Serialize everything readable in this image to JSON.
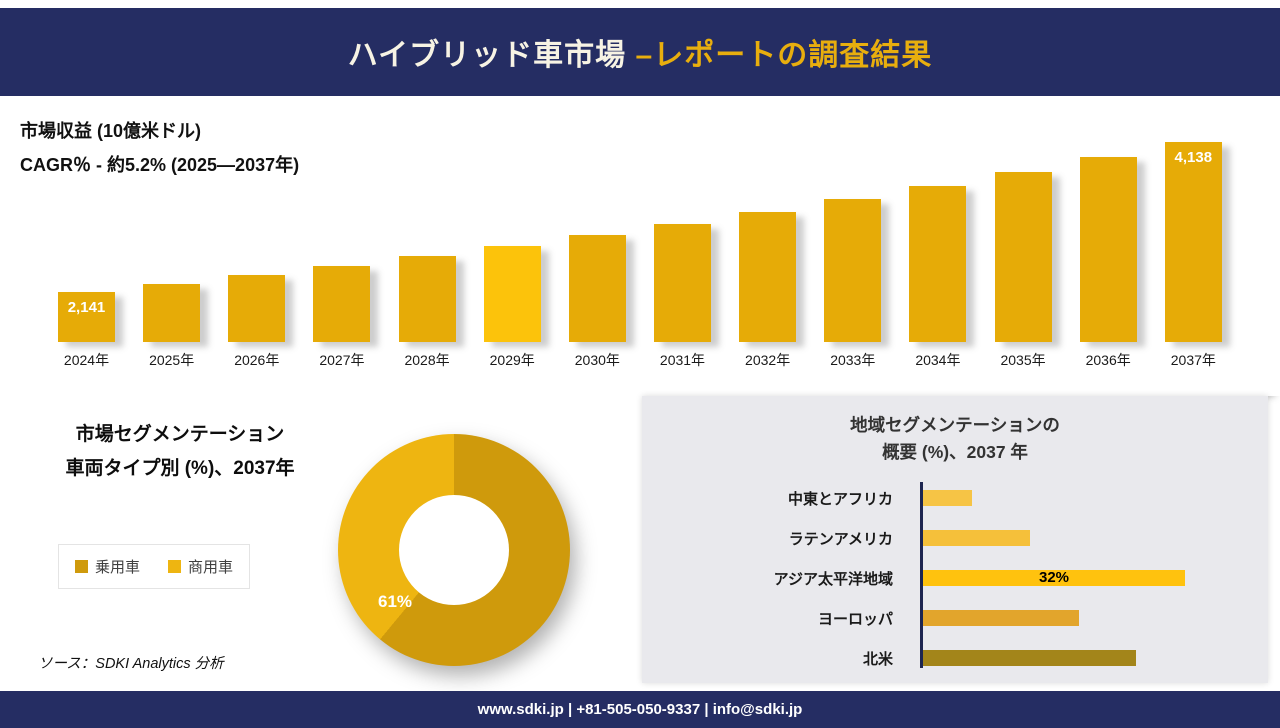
{
  "header": {
    "title_main": "ハイブリッド車市場 ",
    "title_accent": "–レポートの調査結果"
  },
  "revenue": {
    "subtitle_line1": "市場収益 (10億米ドル)",
    "subtitle_line2": "CAGR％ - 約5.2% (2025―2037年)"
  },
  "chart_data": [
    {
      "id": "revenue_bar_chart",
      "type": "bar",
      "title": "市場収益 (10億米ドル)",
      "annotation": "CAGR％ - 約5.2% (2025―2037年)",
      "categories": [
        "2024年",
        "2025年",
        "2026年",
        "2027年",
        "2028年",
        "2029年",
        "2030年",
        "2031年",
        "2032年",
        "2033年",
        "2034年",
        "2035年",
        "2036年",
        "2037年"
      ],
      "values": [
        2141,
        2252,
        2369,
        2492,
        2622,
        2758,
        2901,
        3052,
        3211,
        3378,
        3554,
        3739,
        3933,
        4138
      ],
      "value_labels_shown": {
        "first": "2,141",
        "last": "4,138"
      },
      "bar_color": "#e6ab07",
      "highlight_index": 5,
      "highlight_color": "#fcc30b",
      "grid": false,
      "ylim": [
        1650,
        4300
      ]
    },
    {
      "id": "vehicle_type_donut",
      "type": "pie",
      "title_line1": "市場セグメンテーション",
      "title_line2": "車両タイプ別 (%)、2037年",
      "segments": [
        {
          "label": "乗用車",
          "value": 61,
          "color": "#cf9a0c"
        },
        {
          "label": "商用車",
          "value": 39,
          "color": "#eeb511"
        }
      ],
      "shown_label": "61%",
      "legend_position": "left"
    },
    {
      "id": "region_hbar_chart",
      "type": "bar",
      "orientation": "horizontal",
      "title_line1": "地域セグメンテーションの",
      "title_line2": "概要 (%)、2037 年",
      "categories": [
        "中東とアフリカ",
        "ラテンアメリカ",
        "アジア太平洋地域",
        "ヨーロッパ",
        "北米"
      ],
      "values": [
        6,
        13,
        32,
        19,
        26
      ],
      "colors": [
        "#f6c445",
        "#f5c03a",
        "#ffc20e",
        "#e2a52c",
        "#a3851a"
      ],
      "shown_label": {
        "index": 2,
        "text": "32%"
      }
    }
  ],
  "source": {
    "text": "ソース：SDKI Analytics 分析"
  },
  "footer": {
    "text": "www.sdki.jp | +81-505-050-9337 | info@sdki.jp"
  }
}
